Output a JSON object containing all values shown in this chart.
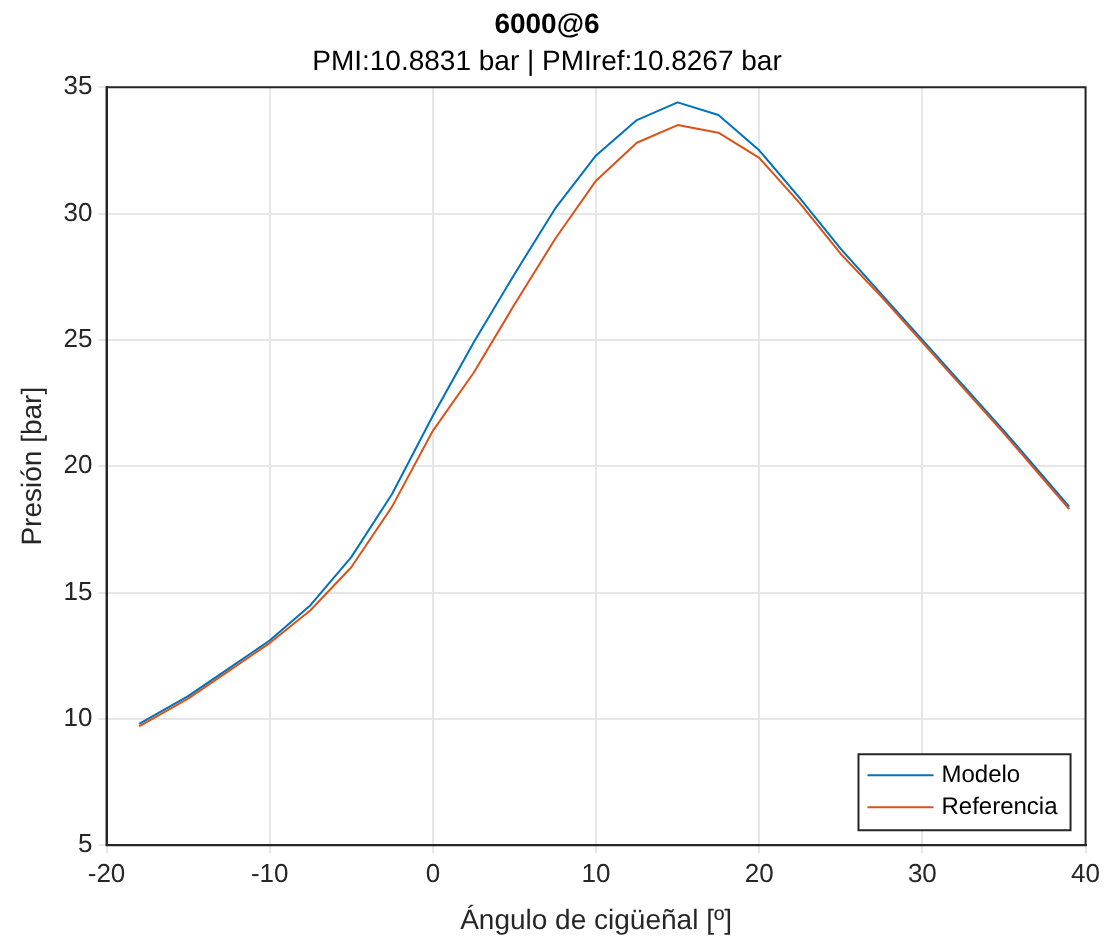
{
  "chart_data": {
    "type": "line",
    "title": "6000@6",
    "subtitle": "PMI:10.8831 bar | PMIref:10.8267 bar",
    "xlabel": "Ángulo de cigüeñal [º]",
    "ylabel": "Presión [bar]",
    "x": [
      -18,
      -15,
      -12.5,
      -10,
      -7.5,
      -5,
      -2.5,
      0,
      2.5,
      5,
      7.5,
      10,
      12.5,
      15,
      17.5,
      20,
      22.5,
      25,
      27.5,
      30,
      32.5,
      35,
      37,
      39
    ],
    "series": [
      {
        "name": "Modelo",
        "color": "#0072bd",
        "values": [
          9.8,
          10.9,
          12.0,
          13.1,
          14.5,
          16.4,
          18.9,
          22.0,
          24.9,
          27.6,
          30.2,
          32.3,
          33.7,
          34.4,
          33.9,
          32.5,
          30.6,
          28.6,
          26.8,
          25.0,
          23.2,
          21.4,
          19.9,
          18.4
        ]
      },
      {
        "name": "Referencia",
        "color": "#d95319",
        "values": [
          9.7,
          10.8,
          11.9,
          13.0,
          14.3,
          16.0,
          18.4,
          21.4,
          23.7,
          26.4,
          29.0,
          31.3,
          32.8,
          33.5,
          33.2,
          32.2,
          30.4,
          28.4,
          26.7,
          24.9,
          23.1,
          21.3,
          19.8,
          18.3
        ]
      }
    ],
    "xlim": [
      -20,
      40
    ],
    "xticks": [
      -20,
      -10,
      0,
      10,
      20,
      30,
      40
    ],
    "ylim": [
      5,
      35
    ],
    "yticks": [
      5,
      10,
      15,
      20,
      25,
      30,
      35
    ],
    "grid": true,
    "legend": "bottom right",
    "marker": "none",
    "line_style": "solid"
  }
}
